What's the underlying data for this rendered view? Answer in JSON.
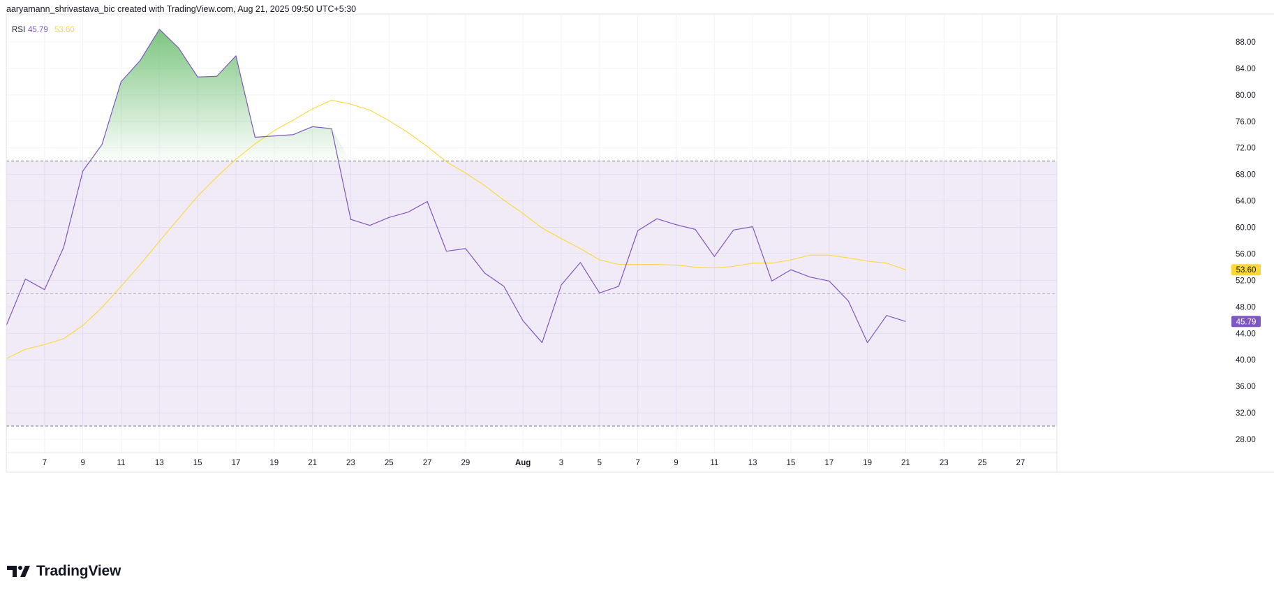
{
  "header": {
    "attribution": "aaryamann_shrivastava_bic created with TradingView.com, Aug 21, 2025 09:50 UTC+5:30"
  },
  "brand": {
    "wordmark": "TradingView"
  },
  "chart_data": {
    "type": "line",
    "indicator": "RSI",
    "legend": {
      "label": "RSI",
      "rsi_value": "45.79",
      "ma_value": "53.60",
      "label_color": "#131722",
      "rsi_color": "#7e57c2",
      "ma_color": "#fdd835"
    },
    "y_axis": {
      "min": 26,
      "max": 92,
      "ticks": [
        88,
        84,
        80,
        76,
        72,
        68,
        64,
        60,
        56,
        52,
        48,
        44,
        40,
        36,
        32,
        28
      ],
      "tick_labels": [
        "88.00",
        "84.00",
        "80.00",
        "76.00",
        "72.00",
        "68.00",
        "64.00",
        "60.00",
        "56.00",
        "52.00",
        "48.00",
        "44.00",
        "40.00",
        "36.00",
        "32.00",
        "28.00"
      ]
    },
    "x_axis": {
      "start_day": 5,
      "end_day": 59.9,
      "ticks": [
        {
          "day": 7,
          "label": "7",
          "bold": false
        },
        {
          "day": 9,
          "label": "9",
          "bold": false
        },
        {
          "day": 11,
          "label": "11",
          "bold": false
        },
        {
          "day": 13,
          "label": "13",
          "bold": false
        },
        {
          "day": 15,
          "label": "15",
          "bold": false
        },
        {
          "day": 17,
          "label": "17",
          "bold": false
        },
        {
          "day": 19,
          "label": "19",
          "bold": false
        },
        {
          "day": 21,
          "label": "21",
          "bold": false
        },
        {
          "day": 23,
          "label": "23",
          "bold": false
        },
        {
          "day": 25,
          "label": "25",
          "bold": false
        },
        {
          "day": 27,
          "label": "27",
          "bold": false
        },
        {
          "day": 29,
          "label": "29",
          "bold": false
        },
        {
          "day": 32,
          "label": "Aug",
          "bold": true
        },
        {
          "day": 34,
          "label": "3",
          "bold": false
        },
        {
          "day": 36,
          "label": "5",
          "bold": false
        },
        {
          "day": 38,
          "label": "7",
          "bold": false
        },
        {
          "day": 40,
          "label": "9",
          "bold": false
        },
        {
          "day": 42,
          "label": "11",
          "bold": false
        },
        {
          "day": 44,
          "label": "13",
          "bold": false
        },
        {
          "day": 46,
          "label": "15",
          "bold": false
        },
        {
          "day": 48,
          "label": "17",
          "bold": false
        },
        {
          "day": 50,
          "label": "19",
          "bold": false
        },
        {
          "day": 52,
          "label": "21",
          "bold": false
        },
        {
          "day": 54,
          "label": "23",
          "bold": false
        },
        {
          "day": 56,
          "label": "25",
          "bold": false
        },
        {
          "day": 58,
          "label": "27",
          "bold": false
        }
      ]
    },
    "bands": {
      "upper": 70,
      "middle": 50,
      "lower": 30,
      "band_fill": "#ede7f6",
      "overbought_fill": "#66bb6a"
    },
    "series": [
      {
        "name": "RSI",
        "color": "#7e57c2",
        "points": [
          [
            5,
            45.2
          ],
          [
            6,
            52.2
          ],
          [
            7,
            50.6
          ],
          [
            8,
            57.0
          ],
          [
            9,
            68.5
          ],
          [
            10,
            72.5
          ],
          [
            11,
            82.0
          ],
          [
            12,
            85.2
          ],
          [
            13,
            89.9
          ],
          [
            14,
            87.1
          ],
          [
            15,
            82.7
          ],
          [
            16,
            82.8
          ],
          [
            17,
            85.9
          ],
          [
            18,
            73.6
          ],
          [
            19,
            73.8
          ],
          [
            20,
            74.0
          ],
          [
            21,
            75.2
          ],
          [
            22,
            74.9
          ],
          [
            23,
            61.2
          ],
          [
            24,
            60.3
          ],
          [
            25,
            61.5
          ],
          [
            26,
            62.3
          ],
          [
            27,
            63.9
          ],
          [
            28,
            56.4
          ],
          [
            29,
            56.8
          ],
          [
            30,
            53.1
          ],
          [
            31,
            51.1
          ],
          [
            32,
            45.9
          ],
          [
            33,
            42.6
          ],
          [
            34,
            51.3
          ],
          [
            35,
            54.7
          ],
          [
            36,
            50.1
          ],
          [
            37,
            51.1
          ],
          [
            38,
            59.5
          ],
          [
            39,
            61.3
          ],
          [
            40,
            60.4
          ],
          [
            41,
            59.7
          ],
          [
            42,
            55.6
          ],
          [
            43,
            59.6
          ],
          [
            44,
            60.1
          ],
          [
            45,
            51.9
          ],
          [
            46,
            53.6
          ],
          [
            47,
            52.5
          ],
          [
            48,
            51.9
          ],
          [
            49,
            48.9
          ],
          [
            50,
            42.6
          ],
          [
            51,
            46.7
          ],
          [
            52,
            45.79
          ]
        ]
      },
      {
        "name": "RSI-based MA",
        "color": "#fdd835",
        "points": [
          [
            5,
            40.2
          ],
          [
            6,
            41.6
          ],
          [
            7,
            42.3
          ],
          [
            8,
            43.2
          ],
          [
            9,
            45.2
          ],
          [
            10,
            47.9
          ],
          [
            11,
            51.1
          ],
          [
            12,
            54.4
          ],
          [
            13,
            57.9
          ],
          [
            14,
            61.3
          ],
          [
            15,
            64.7
          ],
          [
            16,
            67.6
          ],
          [
            17,
            70.3
          ],
          [
            18,
            72.6
          ],
          [
            19,
            74.6
          ],
          [
            20,
            76.2
          ],
          [
            21,
            77.9
          ],
          [
            22,
            79.2
          ],
          [
            23,
            78.6
          ],
          [
            24,
            77.7
          ],
          [
            25,
            76.1
          ],
          [
            26,
            74.3
          ],
          [
            27,
            72.2
          ],
          [
            28,
            69.9
          ],
          [
            29,
            68.2
          ],
          [
            30,
            66.3
          ],
          [
            31,
            64.1
          ],
          [
            32,
            62.1
          ],
          [
            33,
            59.9
          ],
          [
            34,
            58.3
          ],
          [
            35,
            56.8
          ],
          [
            36,
            55.1
          ],
          [
            37,
            54.4
          ],
          [
            38,
            54.4
          ],
          [
            39,
            54.4
          ],
          [
            40,
            54.3
          ],
          [
            41,
            54.0
          ],
          [
            42,
            53.9
          ],
          [
            43,
            54.1
          ],
          [
            44,
            54.6
          ],
          [
            45,
            54.6
          ],
          [
            46,
            55.1
          ],
          [
            47,
            55.8
          ],
          [
            48,
            55.8
          ],
          [
            49,
            55.4
          ],
          [
            50,
            54.9
          ],
          [
            51,
            54.6
          ],
          [
            52,
            53.6
          ]
        ]
      }
    ],
    "price_labels": [
      {
        "value": 53.6,
        "text": "53.60",
        "bg": "#fdd835",
        "dark_text": true
      },
      {
        "value": 45.79,
        "text": "45.79",
        "bg": "#7e57c2",
        "dark_text": false
      }
    ]
  }
}
